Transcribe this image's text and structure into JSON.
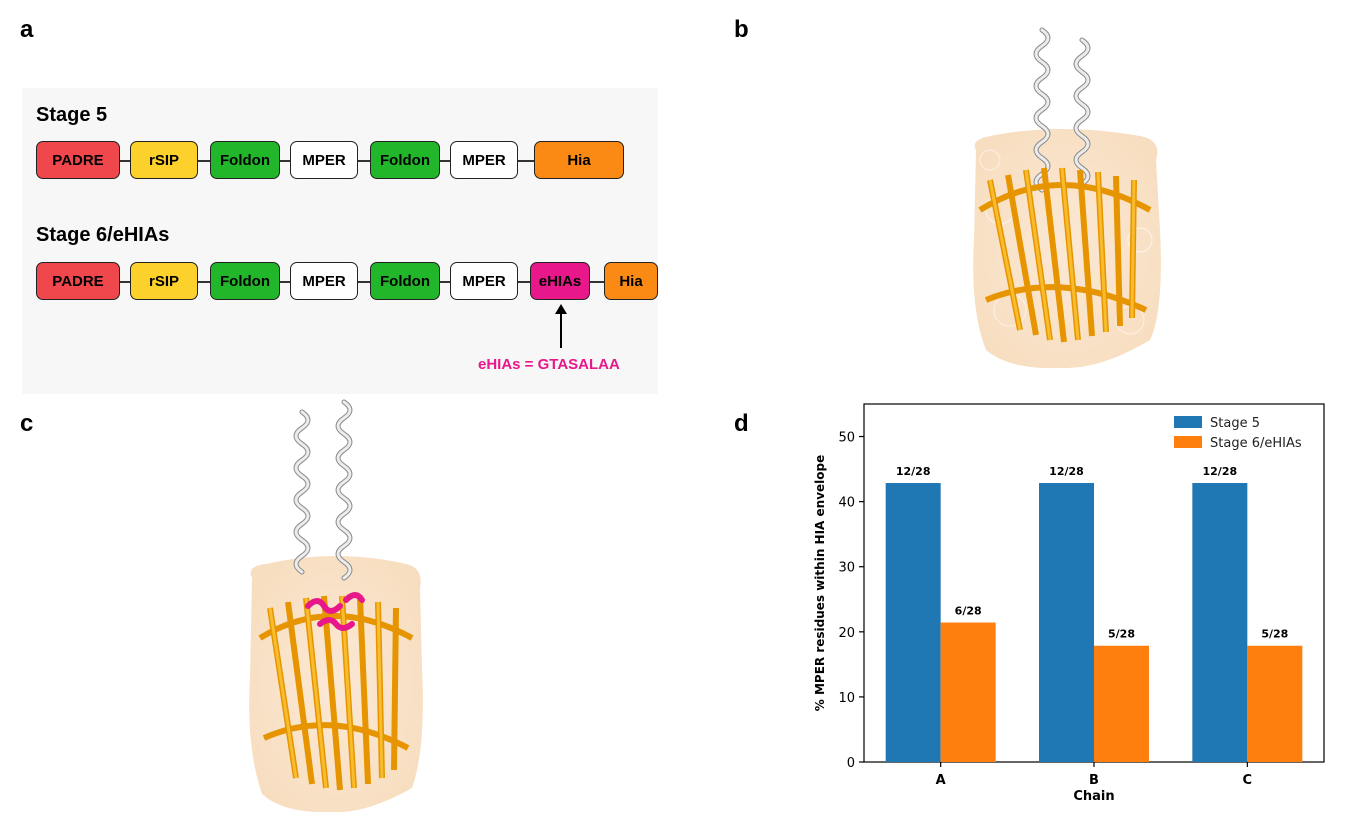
{
  "panels": {
    "a": "a",
    "b": "b",
    "c": "c",
    "d": "d"
  },
  "stage5": {
    "title": "Stage 5",
    "domains": [
      {
        "label": "PADRE",
        "color": "#f0474c"
      },
      {
        "label": "rSIP",
        "color": "#fcd12c"
      },
      {
        "label": "Foldon",
        "color": "#22b62b"
      },
      {
        "label": "MPER",
        "color": "#ffffff"
      },
      {
        "label": "Foldon",
        "color": "#22b62b"
      },
      {
        "label": "MPER",
        "color": "#ffffff"
      },
      {
        "label": "Hia",
        "color": "#fa8a14"
      }
    ]
  },
  "stage6": {
    "title": "Stage 6/eHIAs",
    "domains": [
      {
        "label": "PADRE",
        "color": "#f0474c"
      },
      {
        "label": "rSIP",
        "color": "#fcd12c"
      },
      {
        "label": "Foldon",
        "color": "#22b62b"
      },
      {
        "label": "MPER",
        "color": "#ffffff"
      },
      {
        "label": "Foldon",
        "color": "#22b62b"
      },
      {
        "label": "MPER",
        "color": "#ffffff"
      },
      {
        "label": "eHIAs",
        "color": "#e8178a"
      },
      {
        "label": "Hia",
        "color": "#fa8a14"
      }
    ],
    "annotation": "eHIAs = GTASALAA"
  },
  "chart_data": {
    "type": "bar",
    "categories": [
      "A",
      "B",
      "C"
    ],
    "series": [
      {
        "name": "Stage 5",
        "color": "#1f77b4",
        "values": [
          42.86,
          42.86,
          42.86
        ],
        "labels": [
          "12/28",
          "12/28",
          "12/28"
        ]
      },
      {
        "name": "Stage 6/eHIAs",
        "color": "#ff7f0e",
        "values": [
          21.43,
          17.86,
          17.86
        ],
        "labels": [
          "6/28",
          "5/28",
          "5/28"
        ]
      }
    ],
    "xlabel": "Chain",
    "ylabel": "% MPER residues within HIA envelope",
    "ylim": [
      0,
      55
    ],
    "yticks": [
      0,
      10,
      20,
      30,
      40,
      50
    ],
    "legend": "top-right"
  }
}
